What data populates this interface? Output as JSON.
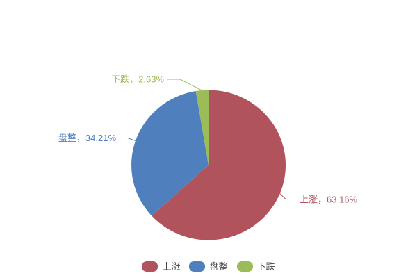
{
  "chart_data": {
    "type": "pie",
    "title": "",
    "background": "#FFFFFF",
    "legend_position": "bottom-center",
    "start_angle_deg": 90,
    "direction": "clockwise",
    "series": [
      {
        "name": "上涨",
        "value": 63.16,
        "unit": "%",
        "label": "上涨，63.16%",
        "color": "#B1535D"
      },
      {
        "name": "盘整",
        "value": 34.21,
        "unit": "%",
        "label": "盘整，34.21%",
        "color": "#4F7FBD"
      },
      {
        "name": "下跌",
        "value": 2.63,
        "unit": "%",
        "label": "下跌，2.63%",
        "color": "#9CBB59"
      }
    ],
    "legend_text_color": "#404040"
  }
}
